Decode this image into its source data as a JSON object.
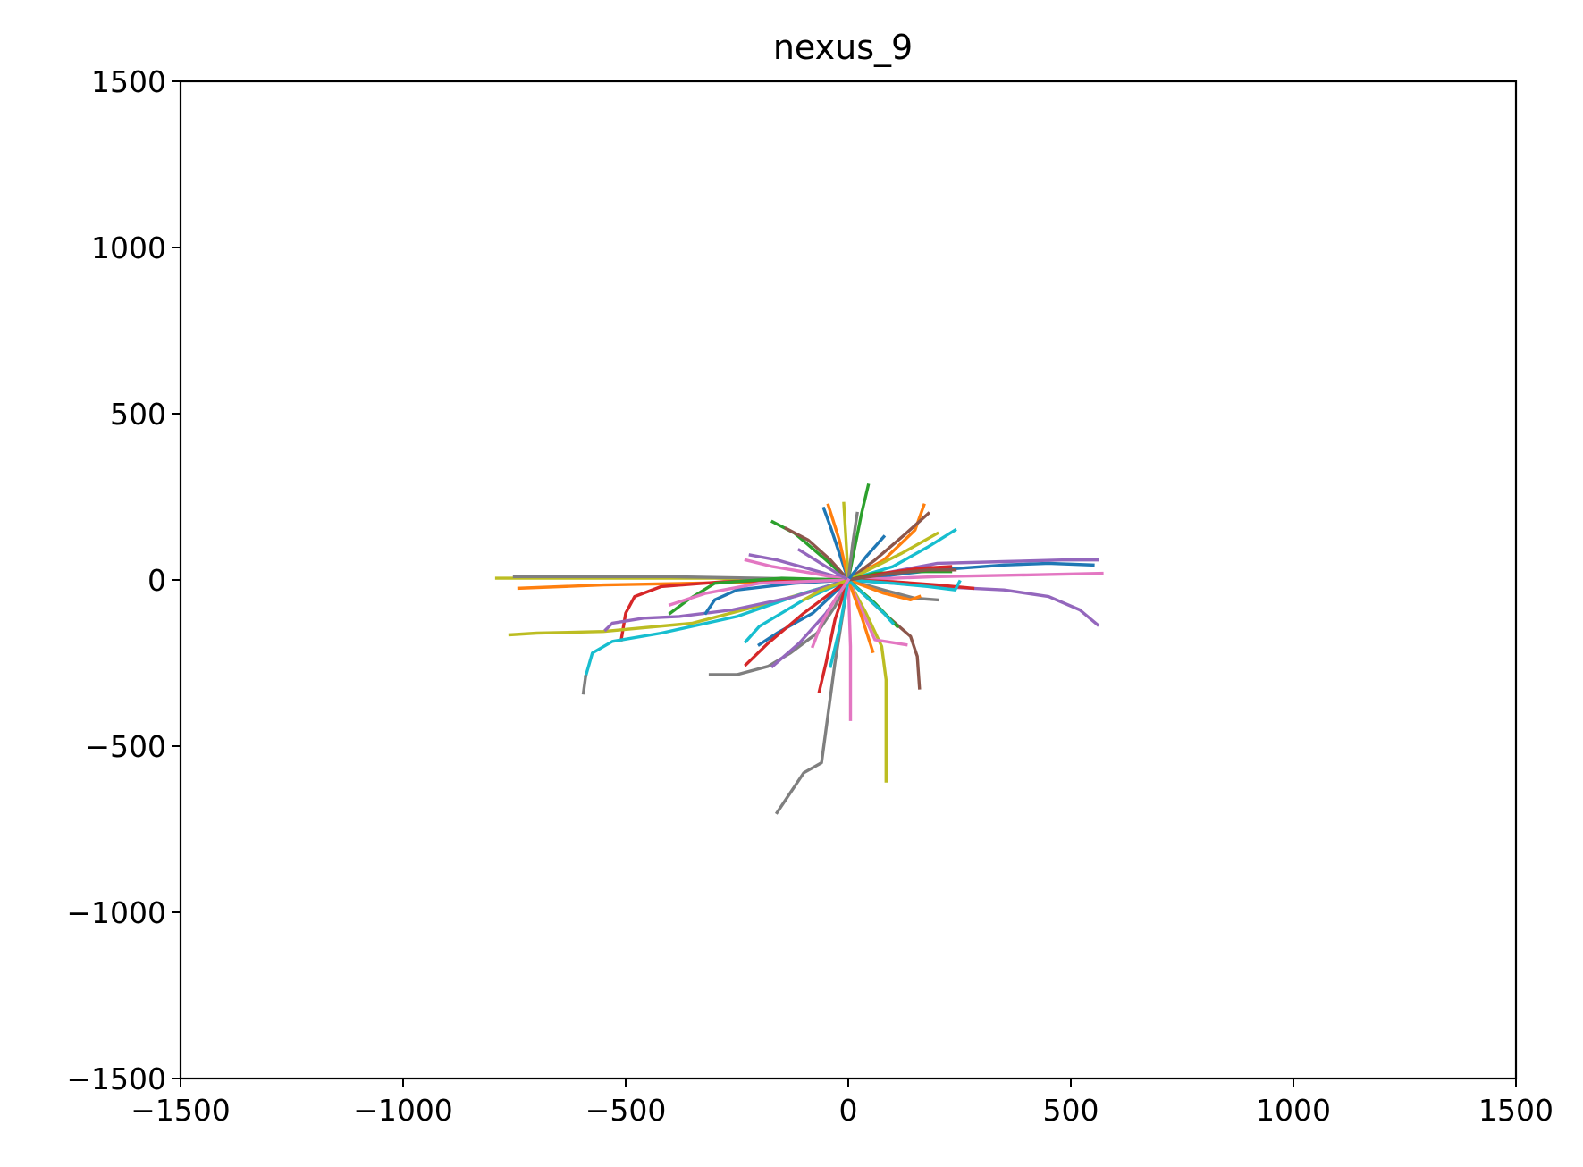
{
  "chart_data": {
    "type": "line",
    "title": "nexus_9",
    "xlabel": "",
    "ylabel": "",
    "xlim": [
      -1500,
      1500
    ],
    "ylim": [
      -1500,
      1500
    ],
    "xticks": [
      -1500,
      -1000,
      -500,
      0,
      500,
      1000,
      1500
    ],
    "yticks": [
      -1500,
      -1000,
      -500,
      0,
      500,
      1000,
      1500
    ],
    "xtick_labels": [
      "−1500",
      "−1000",
      "−500",
      "0",
      "500",
      "1000",
      "1500"
    ],
    "ytick_labels": [
      "−1500",
      "−1000",
      "−500",
      "0",
      "500",
      "1000",
      "1500"
    ],
    "grid": false,
    "legend": "none",
    "series": [
      {
        "color": "#bcbd22",
        "x": [
          0,
          -100,
          -300,
          -500,
          -650,
          -790
        ],
        "y": [
          0,
          0,
          5,
          5,
          5,
          5
        ]
      },
      {
        "color": "#ff7f0e",
        "x": [
          0,
          -150,
          -350,
          -550,
          -740
        ],
        "y": [
          0,
          -5,
          -10,
          -15,
          -25
        ]
      },
      {
        "color": "#7f7f7f",
        "x": [
          0,
          -200,
          -400,
          -600,
          -750
        ],
        "y": [
          0,
          5,
          10,
          10,
          10
        ]
      },
      {
        "color": "#d62728",
        "x": [
          0,
          -120,
          -280,
          -420,
          -480,
          -500,
          -510
        ],
        "y": [
          0,
          0,
          -5,
          -20,
          -50,
          -100,
          -180
        ]
      },
      {
        "color": "#bcbd22",
        "x": [
          0,
          -150,
          -350,
          -550,
          -700,
          -760
        ],
        "y": [
          0,
          -60,
          -130,
          -155,
          -160,
          -165
        ]
      },
      {
        "color": "#17becf",
        "x": [
          0,
          -100,
          -250,
          -420,
          -530,
          -575,
          -590
        ],
        "y": [
          0,
          -40,
          -110,
          -160,
          -185,
          -220,
          -290
        ]
      },
      {
        "color": "#7f7f7f",
        "x": [
          -590,
          -595
        ],
        "y": [
          -290,
          -340
        ]
      },
      {
        "color": "#9467bd",
        "x": [
          0,
          -120,
          -260,
          -380,
          -460,
          -530,
          -545
        ],
        "y": [
          0,
          -50,
          -90,
          -110,
          -115,
          -130,
          -150
        ]
      },
      {
        "color": "#7f7f7f",
        "x": [
          0,
          -30,
          -60,
          -100,
          -160
        ],
        "y": [
          0,
          -250,
          -550,
          -580,
          -700
        ]
      },
      {
        "color": "#7f7f7f",
        "x": [
          0,
          -30,
          -70,
          -130,
          -180,
          -250,
          -310
        ],
        "y": [
          0,
          -80,
          -160,
          -220,
          -260,
          -285,
          -285
        ]
      },
      {
        "color": "#bcbd22",
        "x": [
          0,
          40,
          75,
          85,
          85
        ],
        "y": [
          0,
          -100,
          -200,
          -300,
          -605
        ]
      },
      {
        "color": "#e377c2",
        "x": [
          0,
          5,
          5
        ],
        "y": [
          0,
          -200,
          -420
        ]
      },
      {
        "color": "#d62728",
        "x": [
          0,
          -30,
          -50,
          -65
        ],
        "y": [
          0,
          -120,
          -250,
          -335
        ]
      },
      {
        "color": "#1f77b4",
        "x": [
          0,
          200,
          350,
          450,
          550
        ],
        "y": [
          0,
          30,
          45,
          50,
          45
        ]
      },
      {
        "color": "#9467bd",
        "x": [
          0,
          200,
          350,
          480,
          560
        ],
        "y": [
          0,
          50,
          55,
          60,
          60
        ]
      },
      {
        "color": "#e377c2",
        "x": [
          0,
          200,
          400,
          570
        ],
        "y": [
          0,
          10,
          15,
          20
        ]
      },
      {
        "color": "#9467bd",
        "x": [
          0,
          200,
          350,
          450,
          520,
          560
        ],
        "y": [
          0,
          -20,
          -30,
          -50,
          -90,
          -135
        ]
      },
      {
        "color": "#d62728",
        "x": [
          0,
          100,
          200,
          280
        ],
        "y": [
          0,
          -5,
          -15,
          -25
        ]
      },
      {
        "color": "#8c564b",
        "x": [
          0,
          80,
          140,
          155,
          160
        ],
        "y": [
          0,
          -100,
          -170,
          -230,
          -325
        ]
      },
      {
        "color": "#e377c2",
        "x": [
          0,
          60,
          130
        ],
        "y": [
          0,
          -180,
          -195
        ]
      },
      {
        "color": "#2ca02c",
        "x": [
          0,
          30,
          45
        ],
        "y": [
          0,
          200,
          285
        ]
      },
      {
        "color": "#ff7f0e",
        "x": [
          0,
          80,
          150,
          170
        ],
        "y": [
          0,
          60,
          150,
          225
        ]
      },
      {
        "color": "#8c564b",
        "x": [
          0,
          60,
          130,
          180
        ],
        "y": [
          0,
          60,
          140,
          200
        ]
      },
      {
        "color": "#17becf",
        "x": [
          0,
          100,
          180,
          240
        ],
        "y": [
          0,
          40,
          100,
          150
        ]
      },
      {
        "color": "#bcbd22",
        "x": [
          0,
          120,
          200
        ],
        "y": [
          0,
          80,
          140
        ]
      },
      {
        "color": "#2ca02c",
        "x": [
          0,
          -50,
          -120,
          -170
        ],
        "y": [
          0,
          60,
          140,
          175
        ]
      },
      {
        "color": "#8c564b",
        "x": [
          0,
          -40,
          -90,
          -140
        ],
        "y": [
          0,
          60,
          120,
          155
        ]
      },
      {
        "color": "#1f77b4",
        "x": [
          0,
          -20,
          -40,
          -55
        ],
        "y": [
          0,
          80,
          160,
          215
        ]
      },
      {
        "color": "#ff7f0e",
        "x": [
          0,
          -20,
          -45
        ],
        "y": [
          0,
          120,
          225
        ]
      },
      {
        "color": "#bcbd22",
        "x": [
          0,
          -5,
          -10
        ],
        "y": [
          0,
          120,
          230
        ]
      },
      {
        "color": "#7f7f7f",
        "x": [
          0,
          10,
          20
        ],
        "y": [
          0,
          110,
          200
        ]
      },
      {
        "color": "#9467bd",
        "x": [
          0,
          -80,
          -160,
          -220
        ],
        "y": [
          0,
          30,
          60,
          75
        ]
      },
      {
        "color": "#e377c2",
        "x": [
          0,
          -80,
          -170,
          -230
        ],
        "y": [
          0,
          20,
          40,
          60
        ]
      },
      {
        "color": "#2ca02c",
        "x": [
          0,
          -150,
          -300,
          -360,
          -400
        ],
        "y": [
          0,
          5,
          -10,
          -60,
          -100
        ]
      },
      {
        "color": "#1f77b4",
        "x": [
          0,
          -120,
          -250,
          -300,
          -320
        ],
        "y": [
          0,
          -10,
          -30,
          -60,
          -100
        ]
      },
      {
        "color": "#17becf",
        "x": [
          0,
          -100,
          -200,
          -230
        ],
        "y": [
          0,
          -60,
          -140,
          -185
        ]
      },
      {
        "color": "#1f77b4",
        "x": [
          0,
          -80,
          -160,
          -200
        ],
        "y": [
          0,
          -100,
          -160,
          -195
        ]
      },
      {
        "color": "#2ca02c",
        "x": [
          0,
          60,
          150,
          230
        ],
        "y": [
          0,
          20,
          25,
          25
        ]
      },
      {
        "color": "#7f7f7f",
        "x": [
          0,
          80,
          150,
          200
        ],
        "y": [
          0,
          -30,
          -55,
          -60
        ]
      },
      {
        "color": "#17becf",
        "x": [
          0,
          100,
          180,
          240,
          250
        ],
        "y": [
          0,
          -10,
          -20,
          -30,
          -5
        ]
      },
      {
        "color": "#ff7f0e",
        "x": [
          0,
          80,
          140,
          160
        ],
        "y": [
          0,
          -40,
          -60,
          -50
        ]
      },
      {
        "color": "#2ca02c",
        "x": [
          0,
          60,
          110
        ],
        "y": [
          0,
          -70,
          -140
        ]
      },
      {
        "color": "#ff7f0e",
        "x": [
          0,
          30,
          55
        ],
        "y": [
          0,
          -110,
          -215
        ]
      },
      {
        "color": "#17becf",
        "x": [
          0,
          -20,
          -40
        ],
        "y": [
          0,
          -150,
          -260
        ]
      },
      {
        "color": "#9467bd",
        "x": [
          0,
          -50,
          -110,
          -170
        ],
        "y": [
          0,
          -100,
          -190,
          -260
        ]
      },
      {
        "color": "#d62728",
        "x": [
          0,
          -100,
          -180,
          -230
        ],
        "y": [
          0,
          -100,
          -190,
          -255
        ]
      },
      {
        "color": "#e377c2",
        "x": [
          0,
          -200,
          -320,
          -400
        ],
        "y": [
          0,
          -10,
          -40,
          -75
        ]
      },
      {
        "color": "#bcbd22",
        "x": [
          0,
          -60,
          -100
        ],
        "y": [
          0,
          -30,
          -60
        ]
      },
      {
        "color": "#d62728",
        "x": [
          0,
          80,
          160,
          230
        ],
        "y": [
          0,
          20,
          35,
          40
        ]
      },
      {
        "color": "#9467bd",
        "x": [
          0,
          -50,
          -110
        ],
        "y": [
          0,
          40,
          90
        ]
      },
      {
        "color": "#17becf",
        "x": [
          0,
          40,
          80,
          100
        ],
        "y": [
          0,
          -50,
          -100,
          -130
        ]
      },
      {
        "color": "#8c564b",
        "x": [
          0,
          100,
          180,
          240
        ],
        "y": [
          0,
          20,
          30,
          30
        ]
      },
      {
        "color": "#1f77b4",
        "x": [
          0,
          40,
          80
        ],
        "y": [
          0,
          70,
          130
        ]
      },
      {
        "color": "#e377c2",
        "x": [
          0,
          -30,
          -60,
          -80
        ],
        "y": [
          0,
          -60,
          -130,
          -200
        ]
      }
    ]
  }
}
